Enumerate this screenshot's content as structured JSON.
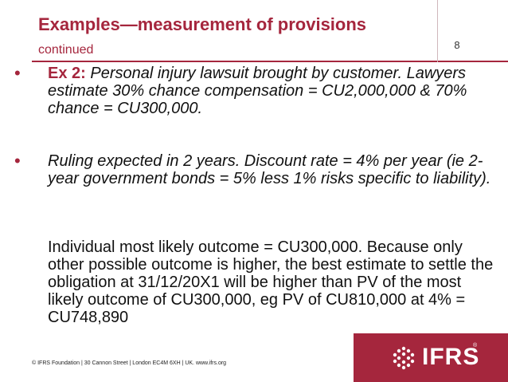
{
  "header": {
    "title": "Examples—measurement of provisions",
    "subtitle": "continued",
    "page_number": "8"
  },
  "bullets": [
    {
      "marker": "•",
      "lead": "Ex 2:",
      "text": " Personal injury lawsuit brought by customer.  Lawyers estimate 30% chance compensation = CU2,000,000 & 70% chance = CU300,000."
    },
    {
      "marker": "•",
      "text": "Ruling expected in 2 years.  Discount rate = 4% per year (ie 2-year government bonds = 5% less 1% risks specific to liability)."
    }
  ],
  "body": "Individual most likely outcome = CU300,000. Because only other possible outcome is higher, the best estimate to settle the obligation at 31/12/20X1 will be higher than PV of the most likely outcome of CU300,000, eg PV of CU810,000 at 4% =   CU748,890",
  "footer": "© IFRS Foundation  |  30 Cannon Street  |  London EC4M 6XH  |  UK.  www.ifrs.org",
  "logo": {
    "text": "IFRS",
    "trademark": "®",
    "icon": "ifrs-dot-grid-icon",
    "color": "#a5263d"
  },
  "colors": {
    "accent": "#a5263d",
    "text": "#111111"
  }
}
